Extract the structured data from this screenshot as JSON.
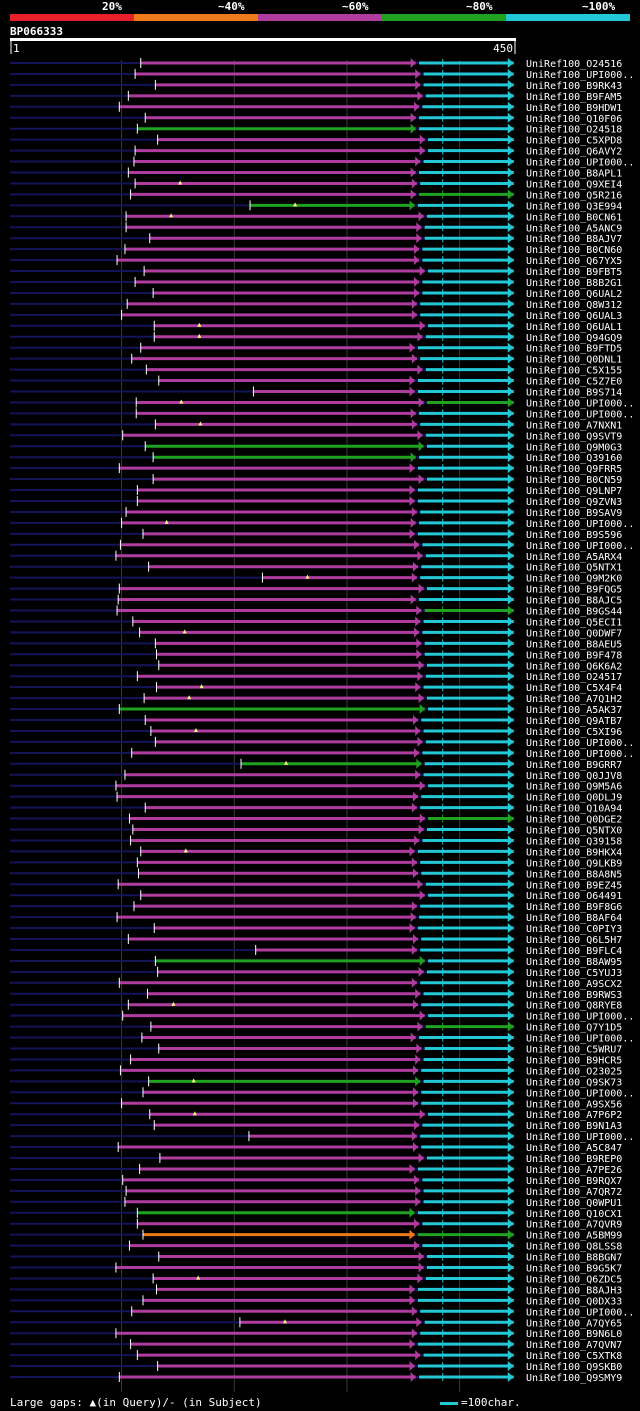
{
  "query": {
    "id": "BP066333",
    "start_label": "1",
    "end_label": "450",
    "length": 450
  },
  "identity_scale": [
    {
      "label": "20%",
      "color": "#e8202a"
    },
    {
      "label": "~40%",
      "color": "#ef7a1c"
    },
    {
      "label": "~60%",
      "color": "#b03ca0"
    },
    {
      "label": "~80%",
      "color": "#1fa21f"
    },
    {
      "label": "~100%",
      "color": "#22c8d6"
    }
  ],
  "footer": {
    "gaps": "Large gaps: ▲(in Query)/- (in Subject)",
    "legend": "=100char."
  },
  "chart_data": {
    "type": "alignment_overview",
    "x_range": [
      1,
      450
    ],
    "grid": "vertical lines every 100 residues",
    "hits": [
      "UniRef100_O24516",
      "UniRef100_UPI000..",
      "UniRef100_B9RK43",
      "UniRef100_B9FAM5",
      "UniRef100_B9HDW1",
      "UniRef100_Q10F06",
      "UniRef100_O24518",
      "UniRef100_C5XPD8",
      "UniRef100_Q6AVY2",
      "UniRef100_UPI000..",
      "UniRef100_B8APL1",
      "UniRef100_Q9XEI4",
      "UniRef100_Q5R216",
      "UniRef100_Q3E994",
      "UniRef100_B0CN61",
      "UniRef100_A5ANC9",
      "UniRef100_B8AJV7",
      "UniRef100_B0CN60",
      "UniRef100_Q67YX5",
      "UniRef100_B9FBT5",
      "UniRef100_B8B2G1",
      "UniRef100_Q6UAL2",
      "UniRef100_Q8W312",
      "UniRef100_Q6UAL3",
      "UniRef100_Q6UAL1",
      "UniRef100_Q94GQ9",
      "UniRef100_B9FTD5",
      "UniRef100_Q0DNL1",
      "UniRef100_C5X155",
      "UniRef100_C5Z7E0",
      "UniRef100_B9S714",
      "UniRef100_UPI000..",
      "UniRef100_UPI000..",
      "UniRef100_A7NXN1",
      "UniRef100_Q9SVT9",
      "UniRef100_Q9M0G3",
      "UniRef100_Q39160",
      "UniRef100_Q9FRR5",
      "UniRef100_B0CN59",
      "UniRef100_Q9LNP7",
      "UniRef100_Q9ZVN3",
      "UniRef100_B9SAV9",
      "UniRef100_UPI000..",
      "UniRef100_B9S596",
      "UniRef100_UPI000..",
      "UniRef100_A5ARX4",
      "UniRef100_Q5NTX1",
      "UniRef100_Q9M2K0",
      "UniRef100_B9FQG5",
      "UniRef100_B8AJC5",
      "UniRef100_B9GS44",
      "UniRef100_Q5ECI1",
      "UniRef100_Q0DWF7",
      "UniRef100_B8AEU5",
      "UniRef100_B9F478",
      "UniRef100_Q6K6A2",
      "UniRef100_O24517",
      "UniRef100_C5X4F4",
      "UniRef100_A7Q1H2",
      "UniRef100_A5AK37",
      "UniRef100_Q9ATB7",
      "UniRef100_C5XI96",
      "UniRef100_UPI000..",
      "UniRef100_UPI000..",
      "UniRef100_B9GRR7",
      "UniRef100_Q0JJV8",
      "UniRef100_Q9M5A6",
      "UniRef100_Q0DLJ9",
      "UniRef100_Q10A94",
      "UniRef100_Q0DGE2",
      "UniRef100_Q5NTX0",
      "UniRef100_Q39158",
      "UniRef100_B9HKX4",
      "UniRef100_Q9LKB9",
      "UniRef100_B8A8N5",
      "UniRef100_B9EZ45",
      "UniRef100_O64491",
      "UniRef100_B9F8G6",
      "UniRef100_B8AF64",
      "UniRef100_C0PIY3",
      "UniRef100_Q6L5H7",
      "UniRef100_B9FLC4",
      "UniRef100_B8AW95",
      "UniRef100_C5YUJ3",
      "UniRef100_A9SCX2",
      "UniRef100_B9RWS3",
      "UniRef100_Q8RYE8",
      "UniRef100_UPI000..",
      "UniRef100_Q7Y1D5",
      "UniRef100_UPI000..",
      "UniRef100_C5WRU7",
      "UniRef100_B9HCR5",
      "UniRef100_O23025",
      "UniRef100_Q9SK73",
      "UniRef100_UPI000..",
      "UniRef100_A9SX56",
      "UniRef100_A7P6P2",
      "UniRef100_B9N1A3",
      "UniRef100_UPI000..",
      "UniRef100_A5C847",
      "UniRef100_B9REP0",
      "UniRef100_A7PE26",
      "UniRef100_B9RQX7",
      "UniRef100_A7QR72",
      "UniRef100_Q0WPU1",
      "UniRef100_Q10CX1",
      "UniRef100_A7QVR9",
      "UniRef100_A5BM99",
      "UniRef100_Q8LSS8",
      "UniRef100_B8BGN7",
      "UniRef100_B9G5K7",
      "UniRef100_Q6ZDC5",
      "UniRef100_B8AJH3",
      "UniRef100_Q0DX33",
      "UniRef100_UPI000..",
      "UniRef100_A7QY65",
      "UniRef100_B9N6L0",
      "UniRef100_A7QVN7",
      "UniRef100_C5XTK8",
      "UniRef100_Q9SKB0",
      "UniRef100_Q9SMY9"
    ]
  }
}
